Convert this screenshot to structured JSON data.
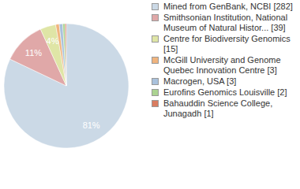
{
  "chart_data": {
    "type": "pie",
    "categories": [
      "Mined from GenBank, NCBI [282]",
      "Smithsonian Institution, National Museum of Natural Histor... [39]",
      "Centre for Biodiversity Genomics [15]",
      "McGill University and Genome Quebec Innovation Centre [3]",
      "Macrogen, USA [3]",
      "Eurofins Genomics Louisville [2]",
      "Bahauddin Science College, Junagadh [1]"
    ],
    "values": [
      81,
      11,
      4,
      0.9,
      0.9,
      0.6,
      0.3
    ],
    "value_labels": [
      "81%",
      "11%",
      "4%",
      null,
      null,
      null,
      null
    ],
    "colors": [
      "#cbd9e6",
      "#e0a8a8",
      "#dfe5a6",
      "#f0b47e",
      "#a9c1dc",
      "#abd391",
      "#d97c60"
    ],
    "data_labels": true,
    "legend": "right"
  }
}
